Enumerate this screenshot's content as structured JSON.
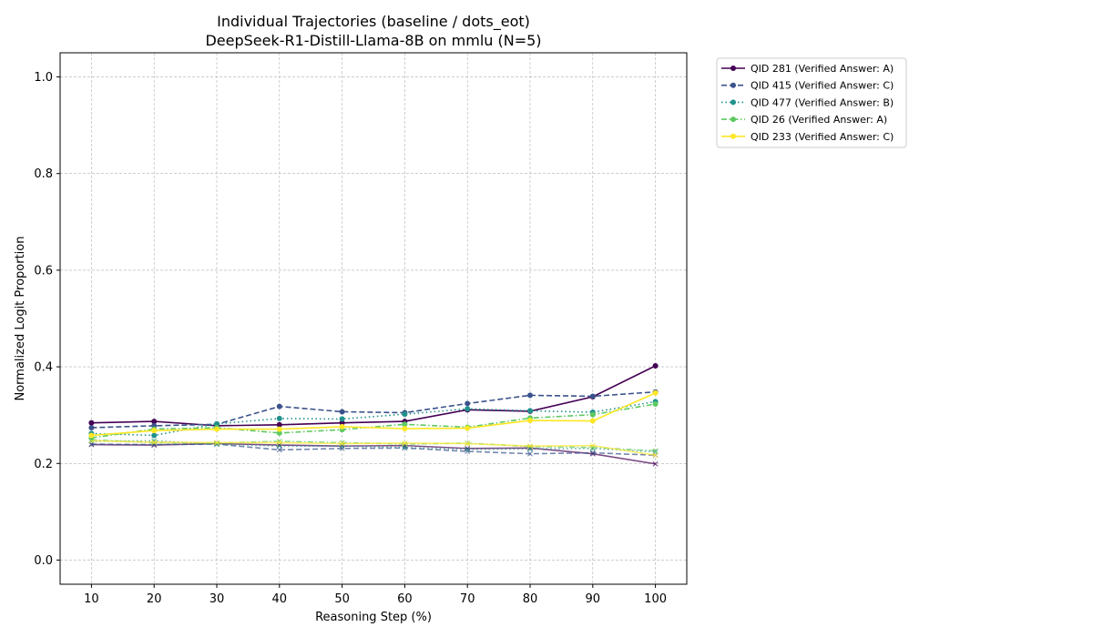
{
  "chart_data": {
    "type": "line",
    "title": "Individual Trajectories (baseline / dots_eot)",
    "subtitle": "DeepSeek-R1-Distill-Llama-8B on mmlu (N=5)",
    "xlabel": "Reasoning Step (%)",
    "ylabel": "Normalized Logit Proportion",
    "x": [
      10,
      20,
      30,
      40,
      50,
      60,
      70,
      80,
      90,
      100
    ],
    "xlim": [
      5,
      105
    ],
    "ylim": [
      -0.05,
      1.05
    ],
    "xticks": [
      10,
      20,
      30,
      40,
      50,
      60,
      70,
      80,
      90,
      100
    ],
    "yticks": [
      0.0,
      0.2,
      0.4,
      0.6,
      0.8,
      1.0
    ],
    "ytick_labels": [
      "0.0",
      "0.2",
      "0.4",
      "0.6",
      "0.8",
      "1.0"
    ],
    "grid": true,
    "legend_position": "outside-top-right",
    "series": [
      {
        "name": "QID 281 (Verified Answer: A)",
        "color": "#440154",
        "dash": "solid",
        "values": [
          0.284,
          0.287,
          0.278,
          0.28,
          0.284,
          0.287,
          0.311,
          0.308,
          0.338,
          0.402
        ]
      },
      {
        "name": "QID 415 (Verified Answer: C)",
        "color": "#3b528b",
        "dash": "dashed",
        "values": [
          0.274,
          0.278,
          0.281,
          0.318,
          0.307,
          0.305,
          0.324,
          0.341,
          0.339,
          0.348
        ]
      },
      {
        "name": "QID 477 (Verified Answer: B)",
        "color": "#21918c",
        "dash": "dotted",
        "values": [
          0.262,
          0.258,
          0.282,
          0.293,
          0.292,
          0.302,
          0.313,
          0.309,
          0.306,
          0.328
        ]
      },
      {
        "name": "QID 26 (Verified Answer: A)",
        "color": "#5ec962",
        "dash": "dashdot",
        "values": [
          0.253,
          0.271,
          0.274,
          0.263,
          0.27,
          0.281,
          0.275,
          0.294,
          0.301,
          0.323
        ]
      },
      {
        "name": "QID 233 (Verified Answer: C)",
        "color": "#fde725",
        "dash": "solid",
        "values": [
          0.258,
          0.268,
          0.271,
          0.271,
          0.276,
          0.272,
          0.273,
          0.289,
          0.288,
          0.346
        ]
      }
    ],
    "secondary_series": [
      {
        "color": "#440154",
        "dash": "solid",
        "values": [
          0.239,
          0.238,
          0.241,
          0.238,
          0.236,
          0.237,
          0.231,
          0.232,
          0.22,
          0.199
        ]
      },
      {
        "color": "#3b528b",
        "dash": "dashed",
        "values": [
          0.24,
          0.239,
          0.24,
          0.228,
          0.231,
          0.232,
          0.225,
          0.22,
          0.222,
          0.217
        ]
      },
      {
        "color": "#21918c",
        "dash": "dotted",
        "values": [
          0.246,
          0.247,
          0.24,
          0.236,
          0.236,
          0.233,
          0.229,
          0.23,
          0.231,
          0.224
        ]
      },
      {
        "color": "#5ec962",
        "dash": "dashdot",
        "values": [
          0.249,
          0.243,
          0.242,
          0.246,
          0.243,
          0.24,
          0.242,
          0.235,
          0.233,
          0.226
        ]
      },
      {
        "color": "#fde725",
        "dash": "solid",
        "values": [
          0.247,
          0.244,
          0.243,
          0.243,
          0.241,
          0.242,
          0.241,
          0.236,
          0.237,
          0.217
        ]
      }
    ]
  }
}
